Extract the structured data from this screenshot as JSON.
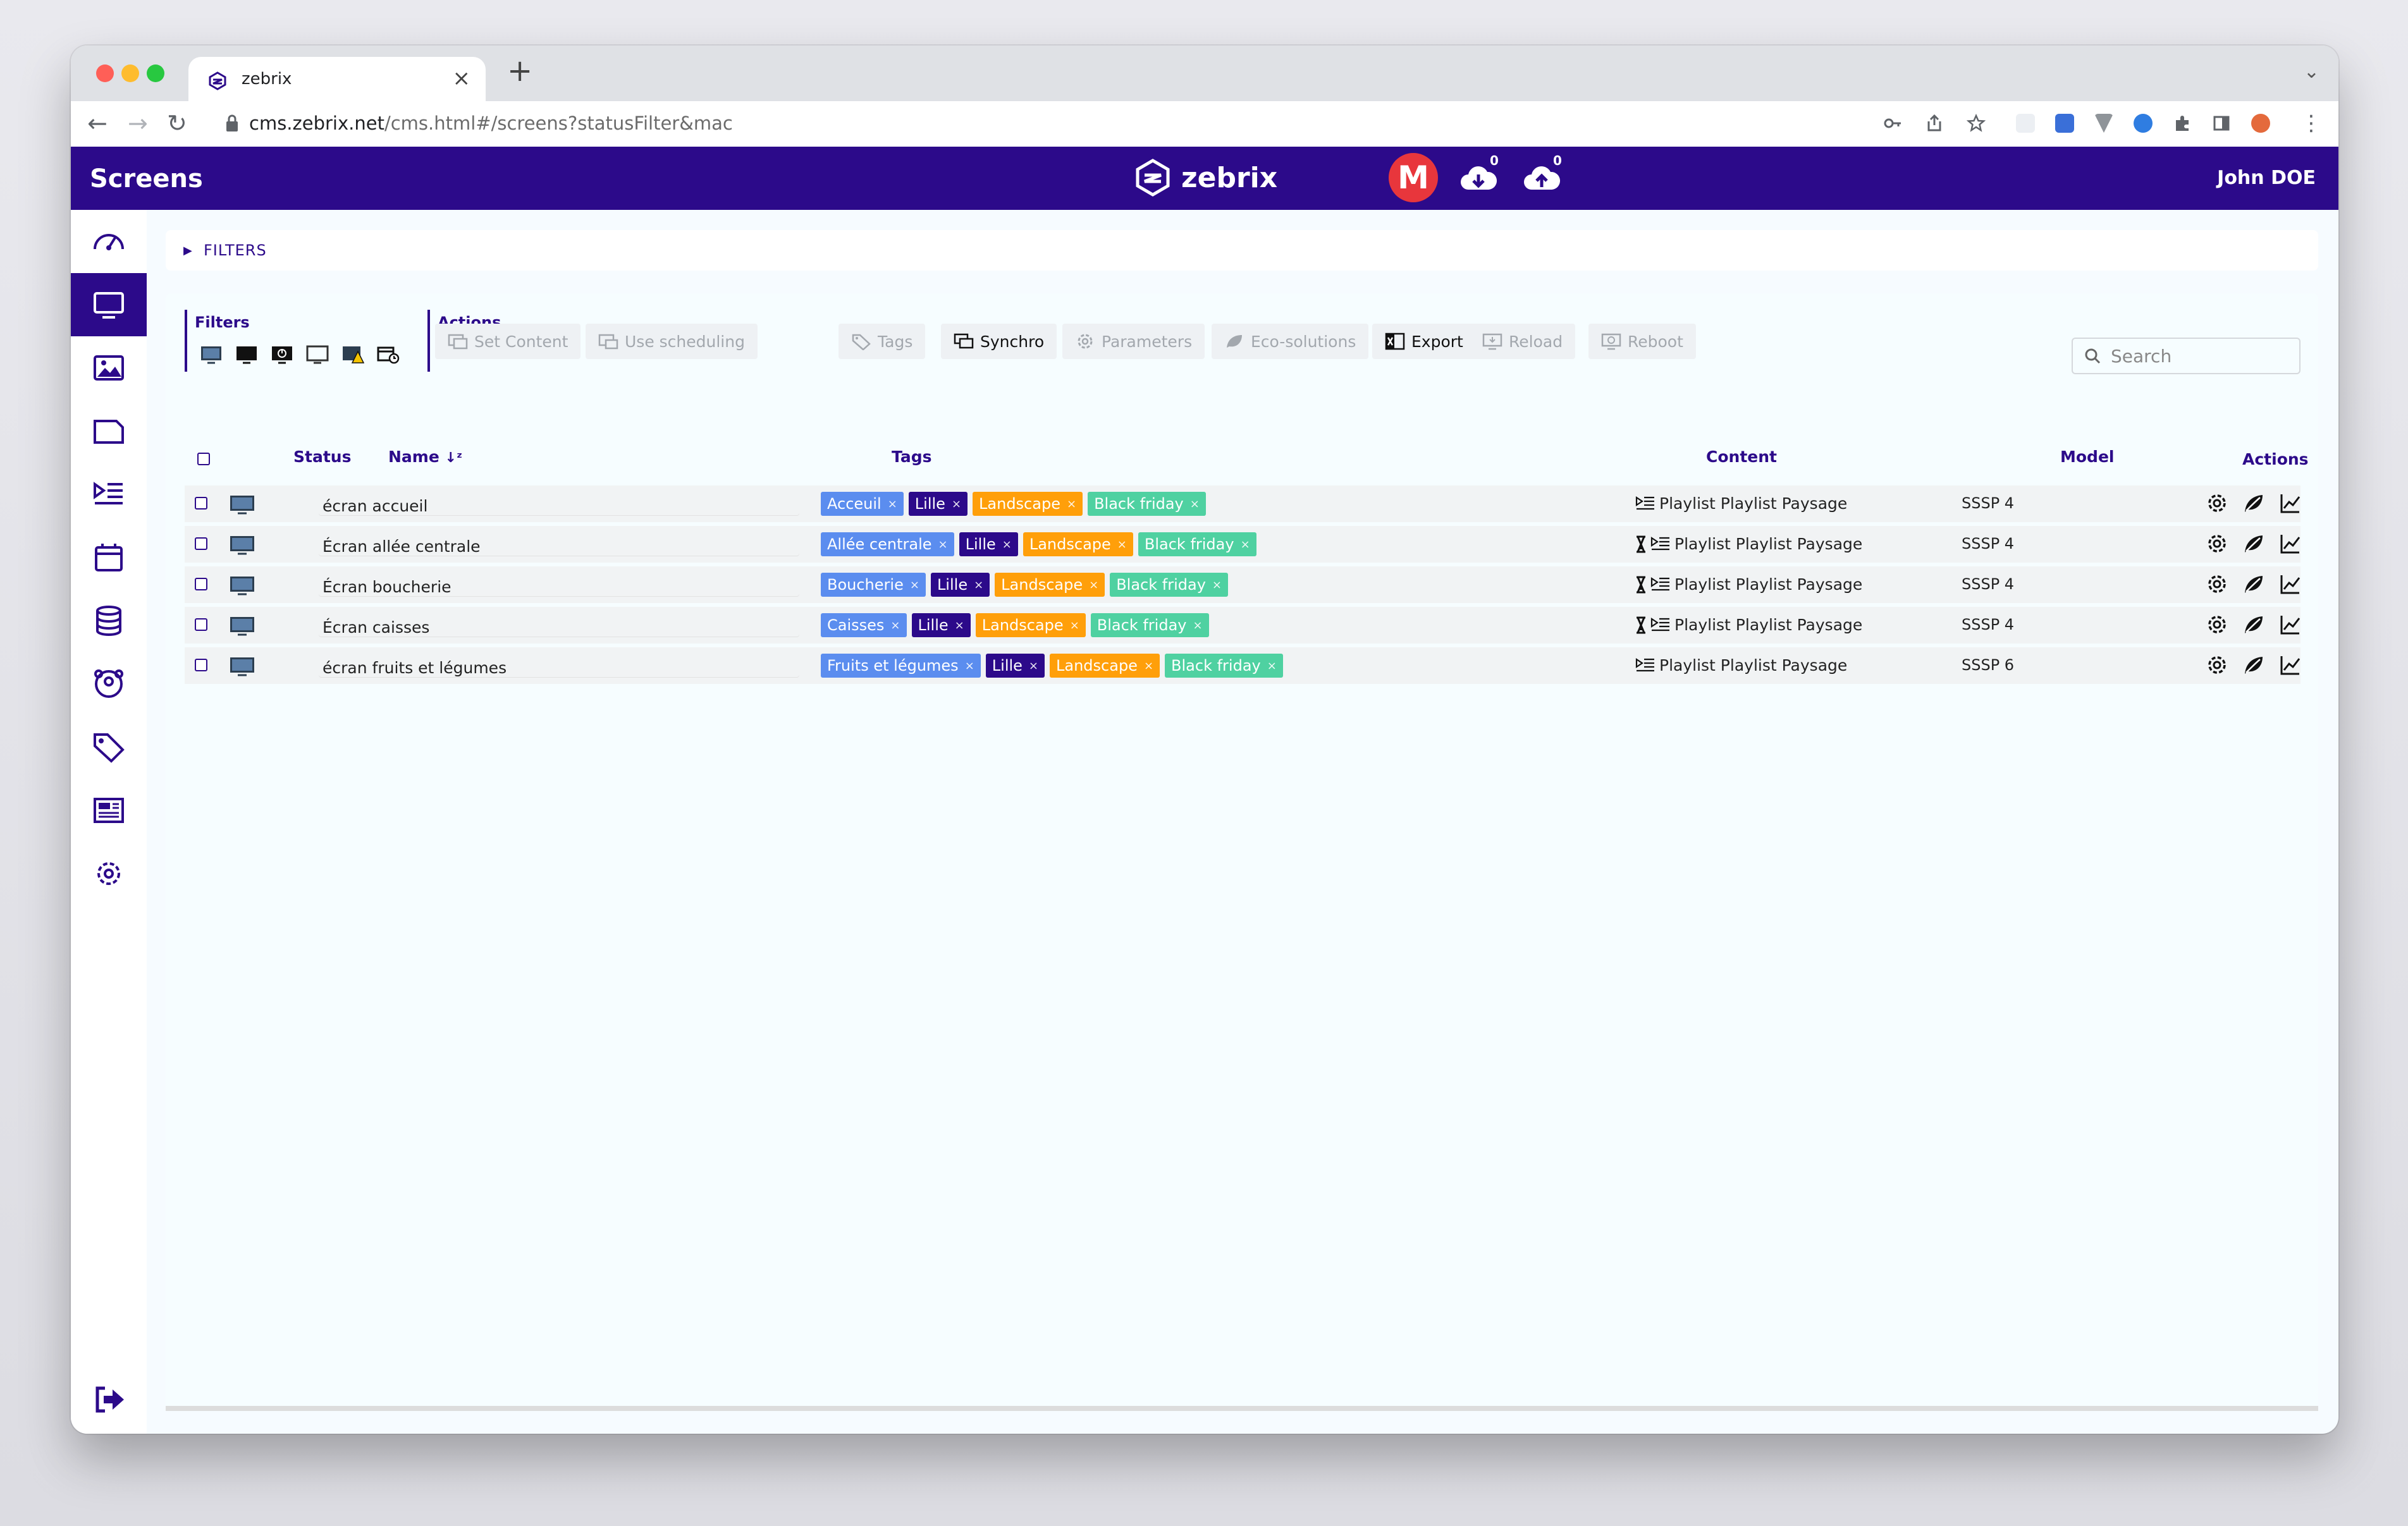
{
  "browser": {
    "tab_title": "zebrix",
    "tab_close": "×",
    "new_tab": "+",
    "url_domain": "cms.zebrix.net",
    "url_path": "/cms.html#/screens?statusFilter&mac"
  },
  "header": {
    "page_title": "Screens",
    "brand": "zebrix",
    "download_count": "0",
    "upload_count": "0",
    "user_name": "John DOE",
    "badge_letter": "M"
  },
  "sidebar": {
    "items": [
      "dashboard-icon",
      "screens-icon",
      "media-icon",
      "folder-icon",
      "playlist-icon",
      "calendar-icon",
      "database-icon",
      "users-icon",
      "tags-icon",
      "news-icon",
      "settings-icon"
    ],
    "logout": "logout-icon"
  },
  "filters_bar": {
    "label": "FILTERS"
  },
  "toolbar": {
    "filters_title": "Filters",
    "actions_title": "Actions",
    "set_content": "Set Content",
    "use_scheduling": "Use scheduling",
    "tags": "Tags",
    "synchro": "Synchro",
    "parameters": "Parameters",
    "eco_solutions": "Eco-solutions",
    "export": "Export",
    "reload": "Reload",
    "reboot": "Reboot",
    "search_placeholder": "Search"
  },
  "table": {
    "headers": {
      "status": "Status",
      "name": "Name",
      "tags": "Tags",
      "content": "Content",
      "model": "Model",
      "actions": "Actions"
    },
    "rows": [
      {
        "name": "écran accueil",
        "tags": [
          "Acceuil",
          "Lille",
          "Landscape",
          "Black friday"
        ],
        "content": "Playlist Playlist Paysage",
        "scheduled": false,
        "model": "SSSP 4"
      },
      {
        "name": "Écran allée centrale",
        "tags": [
          "Allée centrale",
          "Lille",
          "Landscape",
          "Black friday"
        ],
        "content": "Playlist Playlist Paysage",
        "scheduled": true,
        "model": "SSSP 4"
      },
      {
        "name": "Écran boucherie",
        "tags": [
          "Boucherie",
          "Lille",
          "Landscape",
          "Black friday"
        ],
        "content": "Playlist Playlist Paysage",
        "scheduled": true,
        "model": "SSSP 4"
      },
      {
        "name": "Écran caisses",
        "tags": [
          "Caisses",
          "Lille",
          "Landscape",
          "Black friday"
        ],
        "content": "Playlist Playlist Paysage",
        "scheduled": true,
        "model": "SSSP 4"
      },
      {
        "name": "écran fruits et légumes",
        "tags": [
          "Fruits et légumes",
          "Lille",
          "Landscape",
          "Black friday"
        ],
        "content": "Playlist Playlist Paysage",
        "scheduled": false,
        "model": "SSSP 6"
      }
    ]
  },
  "colors": {
    "brand": "#2c0a8a",
    "tag_location": "#5b8def",
    "tag_city": "#2c0a8a",
    "tag_orientation": "#ff9f0a",
    "tag_campaign": "#4fd1a1"
  }
}
